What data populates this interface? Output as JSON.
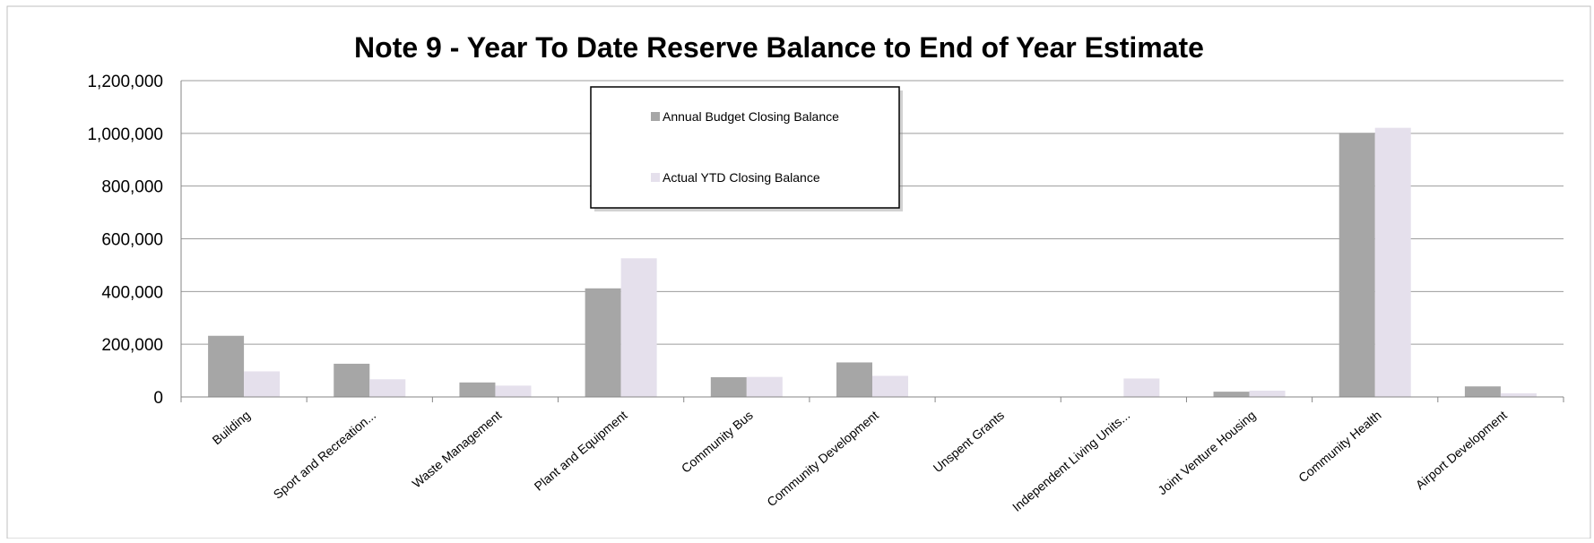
{
  "chart_data": {
    "type": "bar",
    "title": "Note 9 - Year To Date Reserve Balance to End of Year Estimate",
    "xlabel": "",
    "ylabel": "",
    "ylim": [
      0,
      1200000
    ],
    "yticks": [
      "0",
      "200,000",
      "400,000",
      "600,000",
      "800,000",
      "1,000,000",
      "1,200,000"
    ],
    "grid": true,
    "legend_position": "top-center",
    "categories": [
      "Building",
      "Sport and Recreation...",
      "Waste Management",
      "Plant and Equipment",
      "Community Bus",
      "Community Development",
      "Unspent Grants",
      "Independent Living Units...",
      "Joint Venture Housing",
      "Community Health",
      "Airport Development"
    ],
    "series": [
      {
        "name": "Annual Budget Closing Balance",
        "color": "#a6a6a6",
        "values": [
          232000,
          126000,
          55000,
          412000,
          75000,
          131000,
          0,
          0,
          20000,
          1002000,
          40000
        ]
      },
      {
        "name": "Actual YTD Closing Balance",
        "color": "#e5e0ec",
        "values": [
          97000,
          67000,
          43000,
          526000,
          76000,
          80000,
          0,
          70000,
          24000,
          1021000,
          14000
        ]
      }
    ]
  }
}
